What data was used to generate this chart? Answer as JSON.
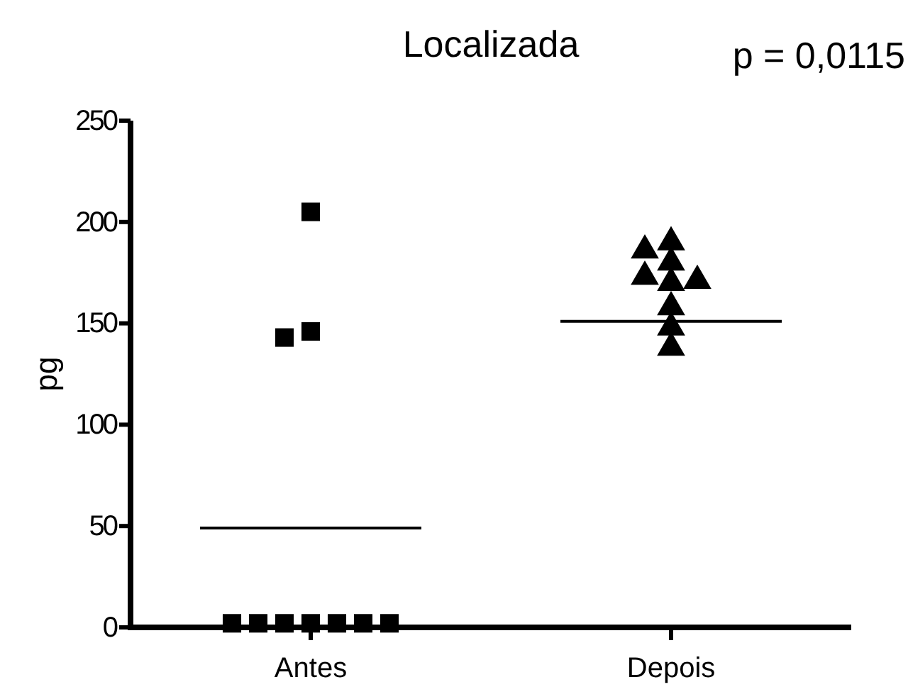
{
  "chart_data": {
    "type": "scatter",
    "title": "Localizada",
    "ylabel": "pg",
    "categories": [
      "Antes",
      "Depois"
    ],
    "ylim": [
      0,
      250
    ],
    "yticks": [
      0,
      50,
      100,
      150,
      200,
      250
    ],
    "grid": false,
    "legend": false,
    "series": [
      {
        "type": "scatter",
        "marker": "square",
        "color": "#000000",
        "x": [
          "Antes",
          "Antes",
          "Antes",
          "Antes",
          "Antes",
          "Antes",
          "Antes",
          "Antes",
          "Antes",
          "Antes"
        ],
        "values": [
          205,
          146,
          143,
          2,
          2,
          2,
          2,
          2,
          2,
          2
        ]
      },
      {
        "type": "scatter",
        "marker": "triangle",
        "color": "#000000",
        "x": [
          "Depois",
          "Depois",
          "Depois",
          "Depois",
          "Depois",
          "Depois",
          "Depois",
          "Depois",
          "Depois"
        ],
        "values": [
          190,
          186,
          180,
          173,
          171,
          170,
          158,
          148,
          138
        ]
      }
    ],
    "ref_lines": [
      {
        "axis": "y",
        "value": 49,
        "color": "#000000"
      },
      {
        "axis": "y",
        "value": 151,
        "color": "#000000"
      }
    ],
    "annotations": [
      "p = 0,0115"
    ]
  }
}
